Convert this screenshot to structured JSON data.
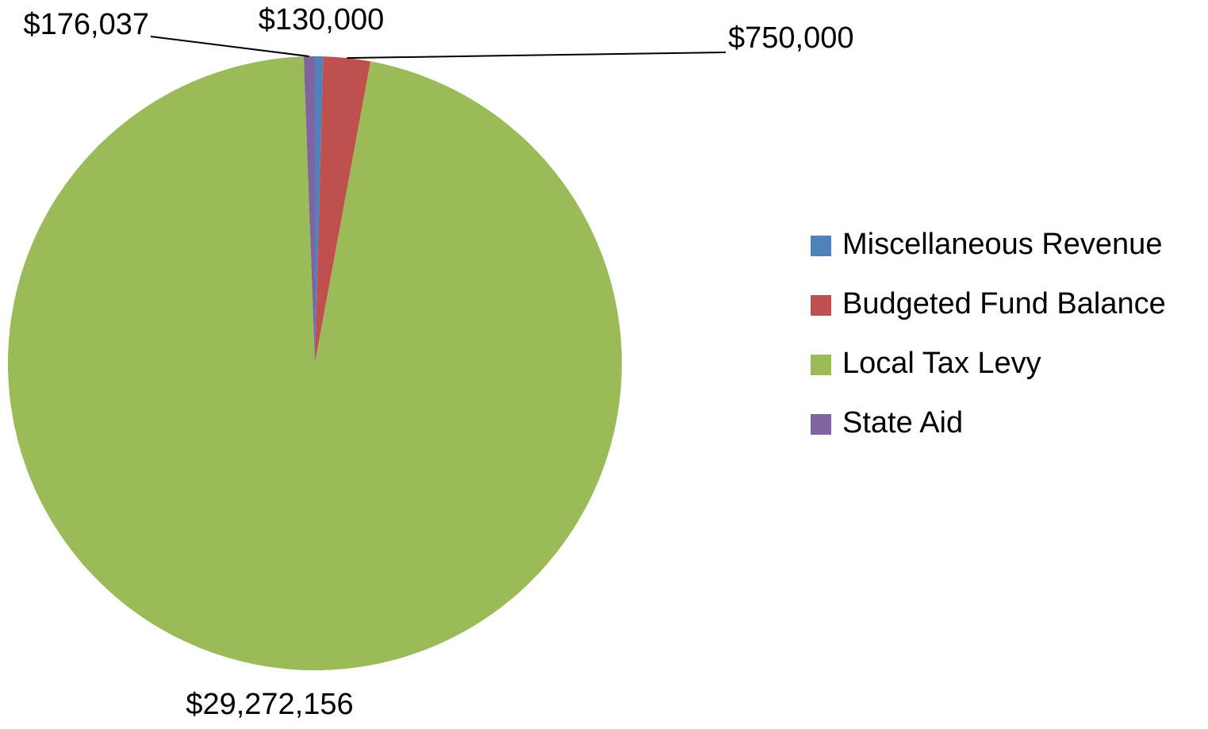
{
  "chart_data": {
    "type": "pie",
    "categories": [
      "Miscellaneous Revenue",
      "Budgeted Fund Balance",
      "Local Tax Levy",
      "State Aid"
    ],
    "values": [
      130000,
      750000,
      29272156,
      176037
    ],
    "value_labels": [
      "$130,000",
      "$750,000",
      "$29,272,156",
      "$176,037"
    ],
    "colors": [
      "#4f81bd",
      "#c0504d",
      "#9bbb59",
      "#8064a2"
    ],
    "legend": "right"
  }
}
